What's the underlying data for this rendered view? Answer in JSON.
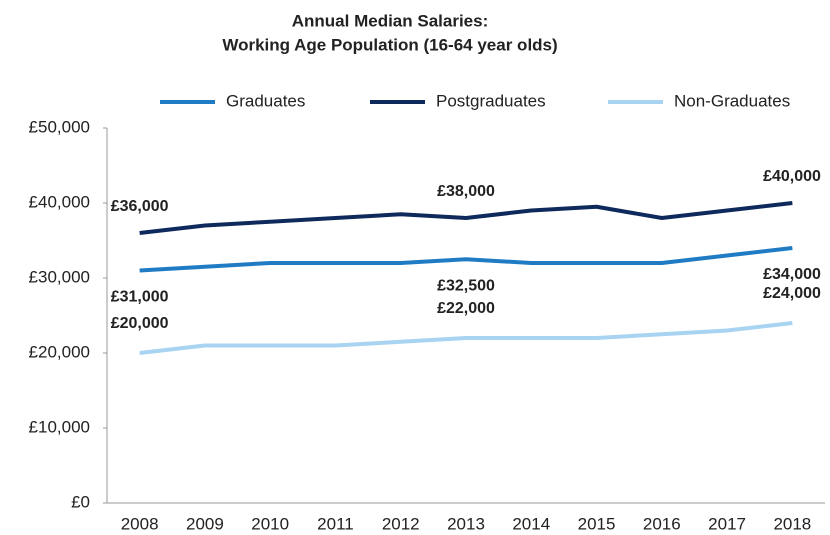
{
  "chart_data": {
    "type": "line",
    "title": "Annual Median Salaries:",
    "subtitle": "Working Age Population (16-64 year olds)",
    "categories": [
      "2008",
      "2009",
      "2010",
      "2011",
      "2012",
      "2013",
      "2014",
      "2015",
      "2016",
      "2017",
      "2018"
    ],
    "series": [
      {
        "name": "Graduates",
        "color": "#1f7cc4",
        "values": [
          31000,
          31500,
          32000,
          32000,
          32000,
          32500,
          32000,
          32000,
          32000,
          33000,
          34000
        ],
        "value_labels": [
          "£31,000",
          null,
          null,
          null,
          null,
          "£32,500",
          null,
          null,
          null,
          null,
          "£34,000"
        ]
      },
      {
        "name": "Postgraduates",
        "color": "#0e2a5c",
        "values": [
          36000,
          37000,
          37500,
          38000,
          38500,
          38000,
          39000,
          39500,
          38000,
          39000,
          40000
        ],
        "value_labels": [
          "£36,000",
          null,
          null,
          null,
          null,
          "£38,000",
          null,
          null,
          null,
          null,
          "£40,000"
        ]
      },
      {
        "name": "Non-Graduates",
        "color": "#a8d4f2",
        "values": [
          20000,
          21000,
          21000,
          21000,
          21500,
          22000,
          22000,
          22000,
          22500,
          23000,
          24000
        ],
        "value_labels": [
          "£20,000",
          null,
          null,
          null,
          null,
          "£22,000",
          null,
          null,
          null,
          null,
          "£24,000"
        ]
      }
    ],
    "ylim": [
      0,
      50000
    ],
    "yticks": [
      {
        "value": 0,
        "label": "£0"
      },
      {
        "value": 10000,
        "label": "£10,000"
      },
      {
        "value": 20000,
        "label": "£20,000"
      },
      {
        "value": 30000,
        "label": "£30,000"
      },
      {
        "value": 40000,
        "label": "£40,000"
      },
      {
        "value": 50000,
        "label": "£50,000"
      }
    ],
    "grid": false,
    "legend": "top"
  }
}
